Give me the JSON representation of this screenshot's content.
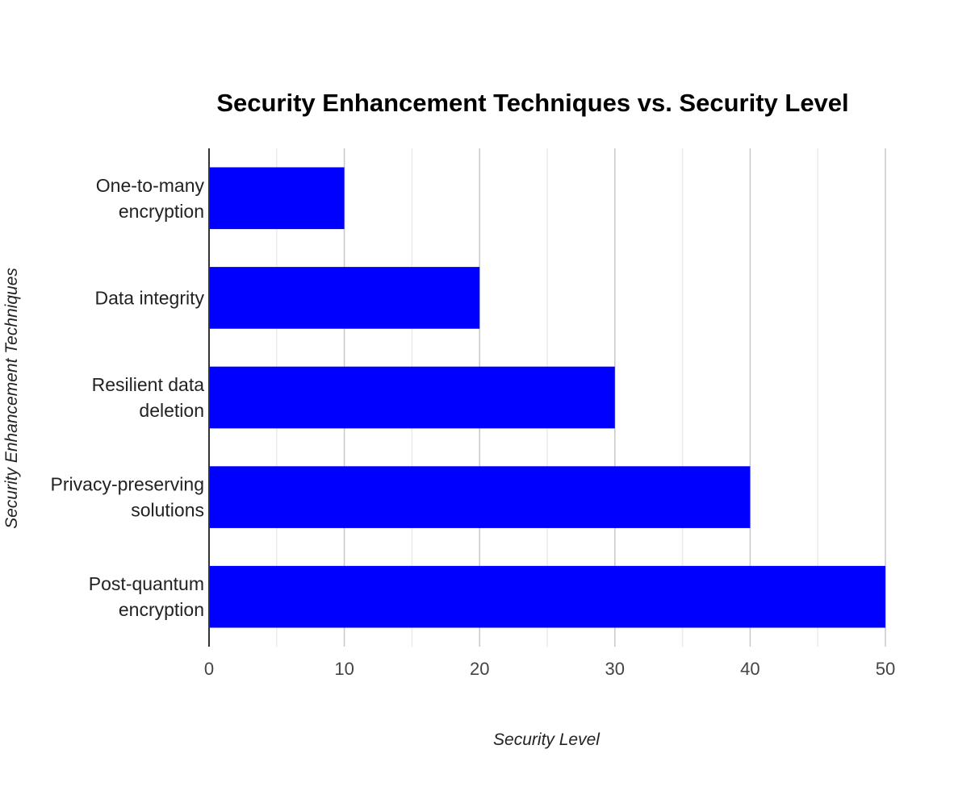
{
  "chart_data": {
    "type": "bar",
    "orientation": "horizontal",
    "title": "Security Enhancement Techniques vs. Security Level",
    "xlabel": "Security Level",
    "ylabel": "Security Enhancement Techniques",
    "categories": [
      [
        "One-to-many",
        "encryption"
      ],
      [
        "Data integrity"
      ],
      [
        "Resilient data",
        "deletion"
      ],
      [
        "Privacy-preserving",
        "solutions"
      ],
      [
        "Post-quantum",
        "encryption"
      ]
    ],
    "values": [
      10,
      20,
      30,
      40,
      50
    ],
    "xlim": [
      0,
      50
    ],
    "xticks": [
      0,
      10,
      20,
      30,
      40,
      50
    ],
    "minor_gridlines": true,
    "grid": true,
    "legend": "none",
    "colors": {
      "bar": "#0000ff",
      "major_grid": "#c8c8c8",
      "minor_grid": "#ebebeb",
      "axis": "#333333"
    }
  }
}
